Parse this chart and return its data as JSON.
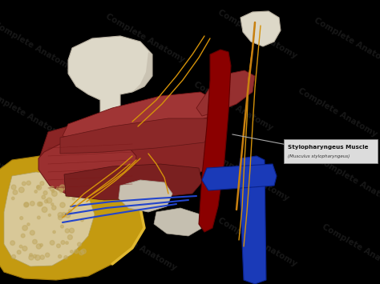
{
  "background_color": "#000000",
  "label_text": "Stylopharyngeus Muscle",
  "label_subtext": "(Musculus stylopharyngeus)",
  "label_box_color": "#dcdcdc",
  "label_text_color": "#111111",
  "watermark_text": "Complete Anatomy",
  "watermark_color": "#2a2a2a",
  "muscle_dark": "#7a1e1e",
  "muscle_mid": "#963030",
  "muscle_light": "#b04040",
  "bone_white": "#ddd8c8",
  "bone_shadow": "#b8b0a0",
  "nerve_orange": "#d4920a",
  "nerve_yellow": "#e8b030",
  "vein_blue": "#1a3ab8",
  "artery_red": "#880000",
  "mandible_yellow": "#c49a10",
  "mandible_light": "#e0b830",
  "spongy_color": "#d8c898",
  "cartilage_white": "#c8c0b0",
  "line_color": "#aaaaaa",
  "figsize": [
    4.74,
    3.55
  ],
  "dpi": 100
}
